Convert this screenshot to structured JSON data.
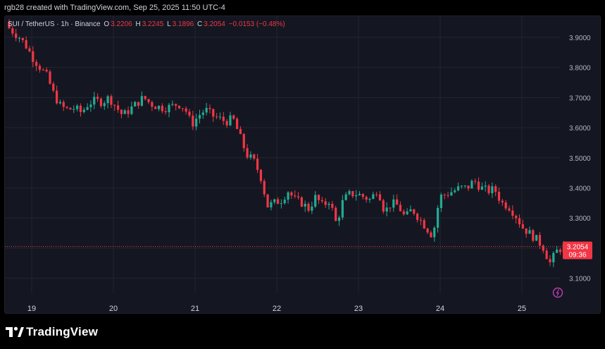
{
  "header": {
    "credit": "rgb28 created with TradingView.com, Sep 25, 2025 11:50 UTC-4"
  },
  "legend": {
    "symbol": "SUI / TetherUS · 1h · Binance",
    "o_label": "O",
    "o_value": "3.2206",
    "h_label": "H",
    "h_value": "3.2245",
    "l_label": "L",
    "l_value": "3.1896",
    "c_label": "C",
    "c_value": "3.2054",
    "change": "−0.0153 (−0.48%)"
  },
  "price_tag": {
    "price": "3.2054",
    "countdown": "09:36"
  },
  "footer": {
    "brand": "TradingView"
  },
  "colors": {
    "up": "#22ab94",
    "down": "#f23645",
    "background": "#141721",
    "grid": "#22262f",
    "text": "#b2b5be"
  },
  "chart_data": {
    "type": "candlestick",
    "title": "",
    "xlabel": "",
    "ylabel": "",
    "ylim": [
      3.05,
      3.97
    ],
    "y_ticks": [
      "3.9000",
      "3.8000",
      "3.7000",
      "3.6000",
      "3.5000",
      "3.4000",
      "3.3000",
      "3.2000",
      "3.1000"
    ],
    "x_ticks": [
      "19",
      "20",
      "21",
      "22",
      "23",
      "24",
      "25"
    ],
    "grid": true,
    "current_price": 3.2054,
    "close_path": [
      [
        0,
        3.93
      ],
      [
        6,
        3.9
      ],
      [
        10,
        3.87
      ],
      [
        14,
        3.83
      ],
      [
        18,
        3.8
      ],
      [
        22,
        3.77
      ],
      [
        26,
        3.71
      ],
      [
        30,
        3.67
      ],
      [
        34,
        3.66
      ],
      [
        38,
        3.665
      ],
      [
        42,
        3.65
      ],
      [
        46,
        3.68
      ],
      [
        50,
        3.69
      ],
      [
        54,
        3.685
      ],
      [
        58,
        3.7
      ],
      [
        62,
        3.67
      ],
      [
        66,
        3.64
      ],
      [
        70,
        3.66
      ],
      [
        74,
        3.68
      ],
      [
        78,
        3.7
      ],
      [
        82,
        3.68
      ],
      [
        86,
        3.67
      ],
      [
        90,
        3.665
      ],
      [
        94,
        3.67
      ],
      [
        98,
        3.68
      ],
      [
        102,
        3.665
      ],
      [
        106,
        3.61
      ],
      [
        110,
        3.64
      ],
      [
        114,
        3.66
      ],
      [
        118,
        3.64
      ],
      [
        122,
        3.63
      ],
      [
        126,
        3.62
      ],
      [
        130,
        3.63
      ],
      [
        134,
        3.57
      ],
      [
        138,
        3.51
      ],
      [
        142,
        3.49
      ],
      [
        146,
        3.44
      ],
      [
        150,
        3.34
      ],
      [
        154,
        3.35
      ],
      [
        158,
        3.36
      ],
      [
        162,
        3.39
      ],
      [
        166,
        3.36
      ],
      [
        170,
        3.35
      ],
      [
        174,
        3.33
      ],
      [
        178,
        3.37
      ],
      [
        182,
        3.34
      ],
      [
        186,
        3.36
      ],
      [
        190,
        3.28
      ],
      [
        194,
        3.36
      ],
      [
        198,
        3.38
      ],
      [
        202,
        3.38
      ],
      [
        206,
        3.37
      ],
      [
        210,
        3.36
      ],
      [
        214,
        3.4
      ],
      [
        218,
        3.32
      ],
      [
        222,
        3.35
      ],
      [
        226,
        3.34
      ],
      [
        230,
        3.3
      ],
      [
        234,
        3.33
      ],
      [
        238,
        3.3
      ],
      [
        242,
        3.27
      ],
      [
        246,
        3.24
      ],
      [
        250,
        3.37
      ],
      [
        254,
        3.38
      ],
      [
        258,
        3.39
      ],
      [
        262,
        3.4
      ],
      [
        266,
        3.4
      ],
      [
        270,
        3.425
      ],
      [
        274,
        3.4
      ],
      [
        278,
        3.39
      ],
      [
        282,
        3.395
      ],
      [
        286,
        3.35
      ],
      [
        290,
        3.34
      ],
      [
        294,
        3.31
      ],
      [
        298,
        3.27
      ],
      [
        302,
        3.25
      ],
      [
        306,
        3.23
      ],
      [
        310,
        3.205
      ],
      [
        314,
        3.15
      ],
      [
        318,
        3.19
      ],
      [
        322,
        3.2054
      ]
    ]
  }
}
